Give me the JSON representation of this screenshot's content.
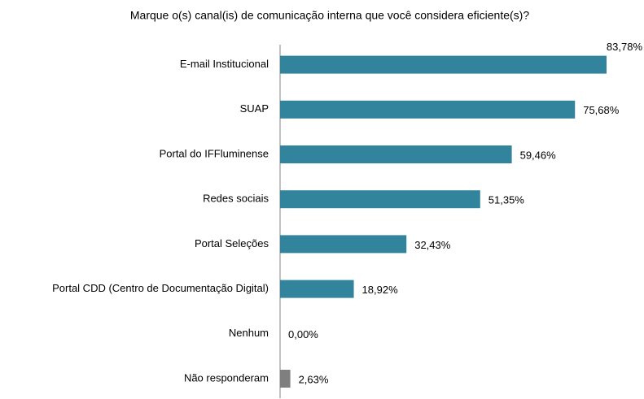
{
  "chart_data": {
    "type": "bar",
    "orientation": "horizontal",
    "title": "Marque o(s) canal(is) de comunicação interna que você considera eficiente(s)?",
    "categories": [
      "E-mail Institucional",
      "SUAP",
      "Portal do IFFluminense",
      "Redes sociais",
      "Portal Seleções",
      "Portal CDD (Centro de Documentação Digital)",
      "Nenhum",
      "Não responderam"
    ],
    "values": [
      83.78,
      75.68,
      59.46,
      51.35,
      32.43,
      18.92,
      0,
      2.63
    ],
    "value_labels": [
      "83,78%",
      "75,68%",
      "59,46%",
      "51,35%",
      "32,43%",
      "18,92%",
      "0,00%",
      "2,63%"
    ],
    "colors": [
      "#31849b",
      "#31849b",
      "#31849b",
      "#31849b",
      "#31849b",
      "#31849b",
      "#31849b",
      "#7f7f7f"
    ]
  }
}
